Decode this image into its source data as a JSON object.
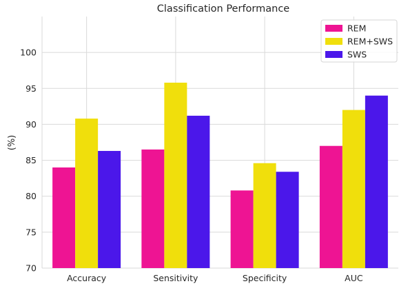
{
  "chart_data": {
    "type": "bar",
    "title": "Classification Performance",
    "xlabel": "",
    "ylabel": "(%)",
    "ylim": [
      70,
      105
    ],
    "yticks": [
      70,
      75,
      80,
      85,
      90,
      95,
      100
    ],
    "categories": [
      "Accuracy",
      "Sensitivity",
      "Specificity",
      "AUC"
    ],
    "series": [
      {
        "name": "REM",
        "color": "#ee1493",
        "values": [
          84.0,
          86.5,
          80.8,
          87.0
        ]
      },
      {
        "name": "REM+SWS",
        "color": "#f0df0c",
        "values": [
          90.8,
          95.8,
          84.6,
          92.0
        ]
      },
      {
        "name": "SWS",
        "color": "#4b17ea",
        "values": [
          86.3,
          91.2,
          83.4,
          94.0
        ]
      }
    ],
    "grid": true,
    "legend_position": "top-right"
  }
}
